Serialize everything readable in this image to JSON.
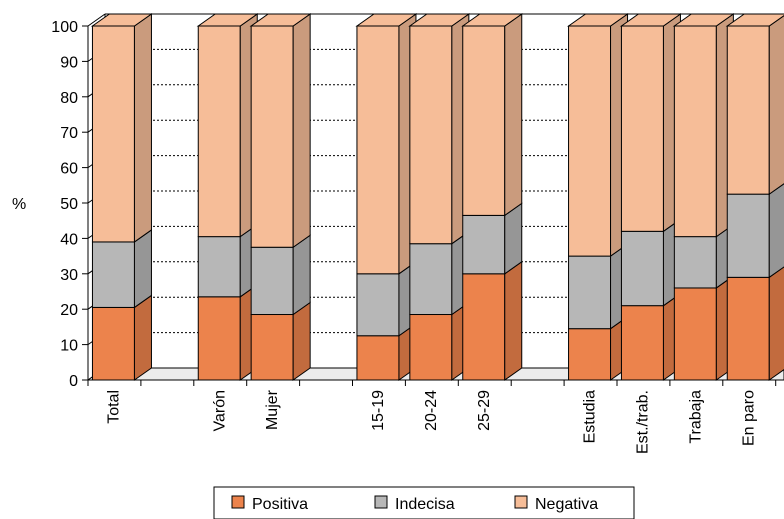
{
  "chart_data": {
    "type": "bar",
    "stacked": true,
    "three_d": true,
    "ylabel": "%",
    "ylim": [
      0,
      100
    ],
    "y_ticks": [
      "0",
      "10",
      "20",
      "30",
      "40",
      "50",
      "60",
      "70",
      "80",
      "90",
      "100"
    ],
    "grid": "dotted horizontal",
    "legend_position": "bottom",
    "categories": [
      "Total",
      "",
      "Varón",
      "Mujer",
      "",
      "15-19",
      "20-24",
      "25-29",
      "",
      "Estudia",
      "Est./trab.",
      "Trabaja",
      "En paro"
    ],
    "series": [
      {
        "name": "Positiva",
        "color": "#ec834c",
        "values": [
          20.5,
          null,
          23.5,
          18.5,
          null,
          12.5,
          18.5,
          30,
          null,
          14.5,
          21,
          26,
          29
        ]
      },
      {
        "name": "Indecisa",
        "color": "#b7b7b7",
        "values": [
          18.5,
          null,
          17,
          19,
          null,
          17.5,
          20,
          16.5,
          null,
          20.5,
          21,
          14.5,
          23.5
        ]
      },
      {
        "name": "Negativa",
        "color": "#f6bd98",
        "values": [
          61,
          null,
          59.5,
          62.5,
          null,
          70,
          61.5,
          53.5,
          null,
          65,
          58,
          59.5,
          47.5
        ]
      }
    ]
  }
}
